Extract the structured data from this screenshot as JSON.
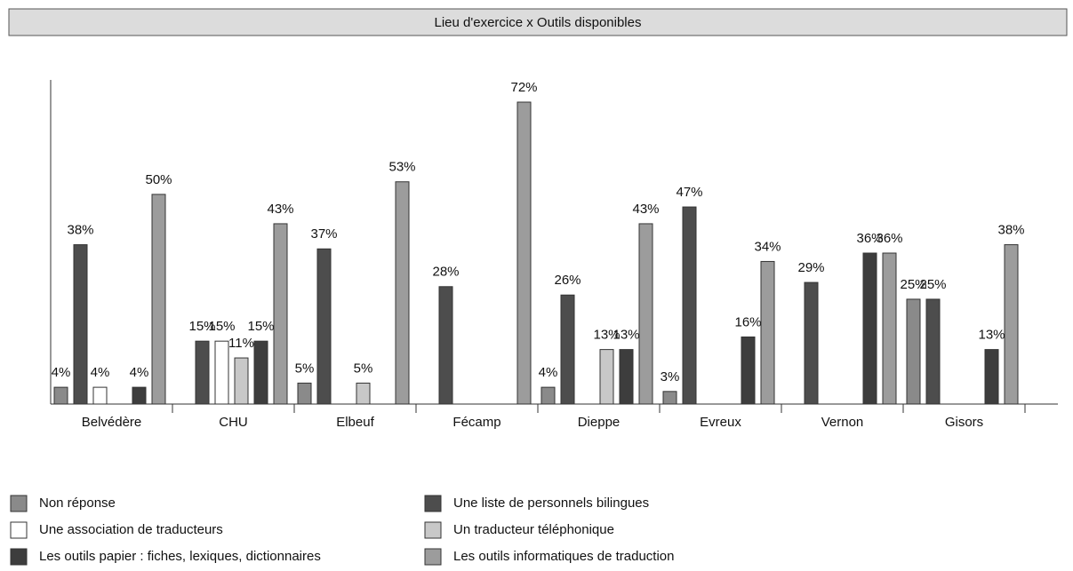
{
  "chart_data": {
    "type": "bar",
    "title": "Lieu d'exercice x Outils disponibles",
    "categories": [
      "Belvédère",
      "CHU",
      "Elbeuf",
      "Fécamp",
      "Dieppe",
      "Evreux",
      "Vernon",
      "Gisors"
    ],
    "series": [
      {
        "name": "Non réponse",
        "color": "#8a8a8a",
        "values": [
          4,
          null,
          5,
          null,
          4,
          3,
          null,
          25
        ],
        "value_labels": [
          "4%",
          null,
          "5%",
          null,
          "4%",
          "3%",
          null,
          "25%"
        ]
      },
      {
        "name": "Une liste de personnels bilingues",
        "color": "#4d4d4d",
        "values": [
          38,
          15,
          37,
          28,
          26,
          47,
          29,
          25
        ],
        "value_labels": [
          "38%",
          "15%",
          "37%",
          "28%",
          "26%",
          "47%",
          "29%",
          "25%"
        ]
      },
      {
        "name": "Une association de traducteurs",
        "color": "#ffffff",
        "values": [
          4,
          15,
          null,
          null,
          null,
          null,
          null,
          null
        ],
        "value_labels": [
          "4%",
          "15%",
          null,
          null,
          null,
          null,
          null,
          null
        ]
      },
      {
        "name": "Un traducteur téléphonique",
        "color": "#c8c8c8",
        "values": [
          null,
          11,
          5,
          null,
          13,
          null,
          null,
          null
        ],
        "value_labels": [
          null,
          "11%",
          "5%",
          null,
          "13%",
          null,
          null,
          null
        ]
      },
      {
        "name": "Les outils papier : fiches, lexiques, dictionnaires",
        "color": "#3d3d3d",
        "values": [
          4,
          15,
          null,
          null,
          13,
          16,
          36,
          13
        ],
        "value_labels": [
          "4%",
          "15%",
          null,
          null,
          "13%",
          "16%",
          "36%",
          "13%"
        ]
      },
      {
        "name": "Les outils informatiques de traduction",
        "color": "#9c9c9c",
        "values": [
          50,
          43,
          53,
          72,
          43,
          34,
          36,
          38
        ],
        "value_labels": [
          "50%",
          "43%",
          "53%",
          "72%",
          "43%",
          "34%",
          "36%",
          "38%"
        ]
      }
    ],
    "legend": "bottom"
  }
}
